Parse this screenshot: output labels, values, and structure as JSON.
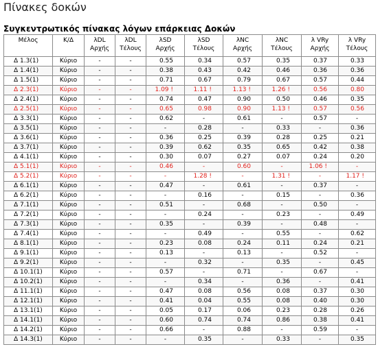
{
  "page_title": "Πίνακες δοκών",
  "table_title": "Συγκεντρωτικός πίνακας λόγων επάρκειας Δοκών",
  "columns": [
    {
      "line1": "Μέλος",
      "line2": ""
    },
    {
      "line1": "Κ/Δ",
      "line2": ""
    },
    {
      "line1": "λDL",
      "line2": "Αρχής"
    },
    {
      "line1": "λDL",
      "line2": "Τέλους"
    },
    {
      "line1": "λSD",
      "line2": "Αρχής"
    },
    {
      "line1": "λSD",
      "line2": "Τέλους"
    },
    {
      "line1": "λNC",
      "line2": "Αρχής"
    },
    {
      "line1": "λNC",
      "line2": "Τέλους"
    },
    {
      "line1": "λ VRy",
      "line2": "Αρχής"
    },
    {
      "line1": "λ VRy",
      "line2": "Τέλους"
    }
  ],
  "rows": [
    {
      "cells": [
        "Δ 1.3(1)",
        "Κύριο",
        "-",
        "-",
        "0.55",
        "0.34",
        "0.57",
        "0.35",
        "0.37",
        "0.33"
      ],
      "fail": false
    },
    {
      "cells": [
        "Δ 1.4(1)",
        "Κύριο",
        "-",
        "-",
        "0.38",
        "0.43",
        "0.42",
        "0.46",
        "0.36",
        "0.36"
      ],
      "fail": false
    },
    {
      "cells": [
        "Δ 1.5(1)",
        "Κύριο",
        "-",
        "-",
        "0.71",
        "0.67",
        "0.79",
        "0.67",
        "0.57",
        "0.44"
      ],
      "fail": false
    },
    {
      "cells": [
        "Δ 2.3(1)",
        "Κύριο",
        "-",
        "-",
        "1.09 !",
        "1.11 !",
        "1.13 !",
        "1.26 !",
        "0.56",
        "0.80"
      ],
      "fail": true
    },
    {
      "cells": [
        "Δ 2.4(1)",
        "Κύριο",
        "-",
        "-",
        "0.74",
        "0.47",
        "0.90",
        "0.50",
        "0.46",
        "0.35"
      ],
      "fail": false
    },
    {
      "cells": [
        "Δ 2.5(1)",
        "Κύριο",
        "-",
        "-",
        "0.65",
        "0.98",
        "0.90",
        "1.13 !",
        "0.57",
        "0.56"
      ],
      "fail": true
    },
    {
      "cells": [
        "Δ 3.3(1)",
        "Κύριο",
        "-",
        "-",
        "0.62",
        "-",
        "0.61",
        "-",
        "0.57",
        "-"
      ],
      "fail": false
    },
    {
      "cells": [
        "Δ 3.5(1)",
        "Κύριο",
        "-",
        "-",
        "-",
        "0.28",
        "-",
        "0.33",
        "-",
        "0.36"
      ],
      "fail": false
    },
    {
      "cells": [
        "Δ 3.6(1)",
        "Κύριο",
        "-",
        "-",
        "0.36",
        "0.25",
        "0.39",
        "0.28",
        "0.25",
        "0.21"
      ],
      "fail": false
    },
    {
      "cells": [
        "Δ 3.7(1)",
        "Κύριο",
        "-",
        "-",
        "0.39",
        "0.62",
        "0.35",
        "0.65",
        "0.42",
        "0.38"
      ],
      "fail": false
    },
    {
      "cells": [
        "Δ 4.1(1)",
        "Κύριο",
        "-",
        "-",
        "0.30",
        "0.07",
        "0.27",
        "0.07",
        "0.24",
        "0.20"
      ],
      "fail": false
    },
    {
      "cells": [
        "Δ 5.1(1)",
        "Κύριο",
        "-",
        "-",
        "0.46",
        "-",
        "0.60",
        "-",
        "1.06 !",
        "-"
      ],
      "fail": true
    },
    {
      "cells": [
        "Δ 5.2(1)",
        "Κύριο",
        "-",
        "-",
        "-",
        "1.28 !",
        "-",
        "1.31 !",
        "-",
        "1.17 !"
      ],
      "fail": true
    },
    {
      "cells": [
        "Δ 6.1(1)",
        "Κύριο",
        "-",
        "-",
        "0.47",
        "-",
        "0.61",
        "-",
        "0.37",
        "-"
      ],
      "fail": false
    },
    {
      "cells": [
        "Δ 6.2(1)",
        "Κύριο",
        "-",
        "-",
        "-",
        "0.16",
        "-",
        "0.15",
        "-",
        "0.36"
      ],
      "fail": false
    },
    {
      "cells": [
        "Δ 7.1(1)",
        "Κύριο",
        "-",
        "-",
        "0.51",
        "-",
        "0.68",
        "-",
        "0.50",
        "-"
      ],
      "fail": false
    },
    {
      "cells": [
        "Δ 7.2(1)",
        "Κύριο",
        "-",
        "-",
        "-",
        "0.24",
        "-",
        "0.23",
        "-",
        "0.49"
      ],
      "fail": false
    },
    {
      "cells": [
        "Δ 7.3(1)",
        "Κύριο",
        "-",
        "-",
        "0.35",
        "-",
        "0.39",
        "-",
        "0.48",
        "-"
      ],
      "fail": false
    },
    {
      "cells": [
        "Δ 7.4(1)",
        "Κύριο",
        "-",
        "-",
        "-",
        "0.49",
        "-",
        "0.55",
        "-",
        "0.62"
      ],
      "fail": false
    },
    {
      "cells": [
        "Δ 8.1(1)",
        "Κύριο",
        "-",
        "-",
        "0.23",
        "0.08",
        "0.24",
        "0.11",
        "0.24",
        "0.21"
      ],
      "fail": false
    },
    {
      "cells": [
        "Δ 9.1(1)",
        "Κύριο",
        "-",
        "-",
        "0.13",
        "-",
        "0.13",
        "-",
        "0.52",
        "-"
      ],
      "fail": false
    },
    {
      "cells": [
        "Δ 9.2(1)",
        "Κύριο",
        "-",
        "-",
        "-",
        "0.32",
        "-",
        "0.35",
        "-",
        "0.45"
      ],
      "fail": false
    },
    {
      "cells": [
        "Δ 10.1(1)",
        "Κύριο",
        "-",
        "-",
        "0.57",
        "-",
        "0.71",
        "-",
        "0.67",
        "-"
      ],
      "fail": false
    },
    {
      "cells": [
        "Δ 10.2(1)",
        "Κύριο",
        "-",
        "-",
        "-",
        "0.34",
        "-",
        "0.36",
        "-",
        "0.41"
      ],
      "fail": false
    },
    {
      "cells": [
        "Δ 11.1(1)",
        "Κύριο",
        "-",
        "-",
        "0.47",
        "0.08",
        "0.56",
        "0.08",
        "0.37",
        "0.30"
      ],
      "fail": false
    },
    {
      "cells": [
        "Δ 12.1(1)",
        "Κύριο",
        "-",
        "-",
        "0.41",
        "0.04",
        "0.55",
        "0.08",
        "0.40",
        "0.30"
      ],
      "fail": false
    },
    {
      "cells": [
        "Δ 13.1(1)",
        "Κύριο",
        "-",
        "-",
        "0.05",
        "0.17",
        "0.06",
        "0.23",
        "0.28",
        "0.26"
      ],
      "fail": false
    },
    {
      "cells": [
        "Δ 14.1(1)",
        "Κύριο",
        "-",
        "-",
        "0.60",
        "0.74",
        "0.74",
        "0.86",
        "0.38",
        "0.41"
      ],
      "fail": false
    },
    {
      "cells": [
        "Δ 14.2(1)",
        "Κύριο",
        "-",
        "-",
        "0.66",
        "-",
        "0.88",
        "-",
        "0.59",
        "-"
      ],
      "fail": false
    },
    {
      "cells": [
        "Δ 14.3(1)",
        "Κύριο",
        "-",
        "-",
        "-",
        "0.35",
        "-",
        "0.33",
        "-",
        "0.35"
      ],
      "fail": false
    }
  ],
  "colors": {
    "fail_text": "#e0201b",
    "border": "#8a8a8a"
  }
}
